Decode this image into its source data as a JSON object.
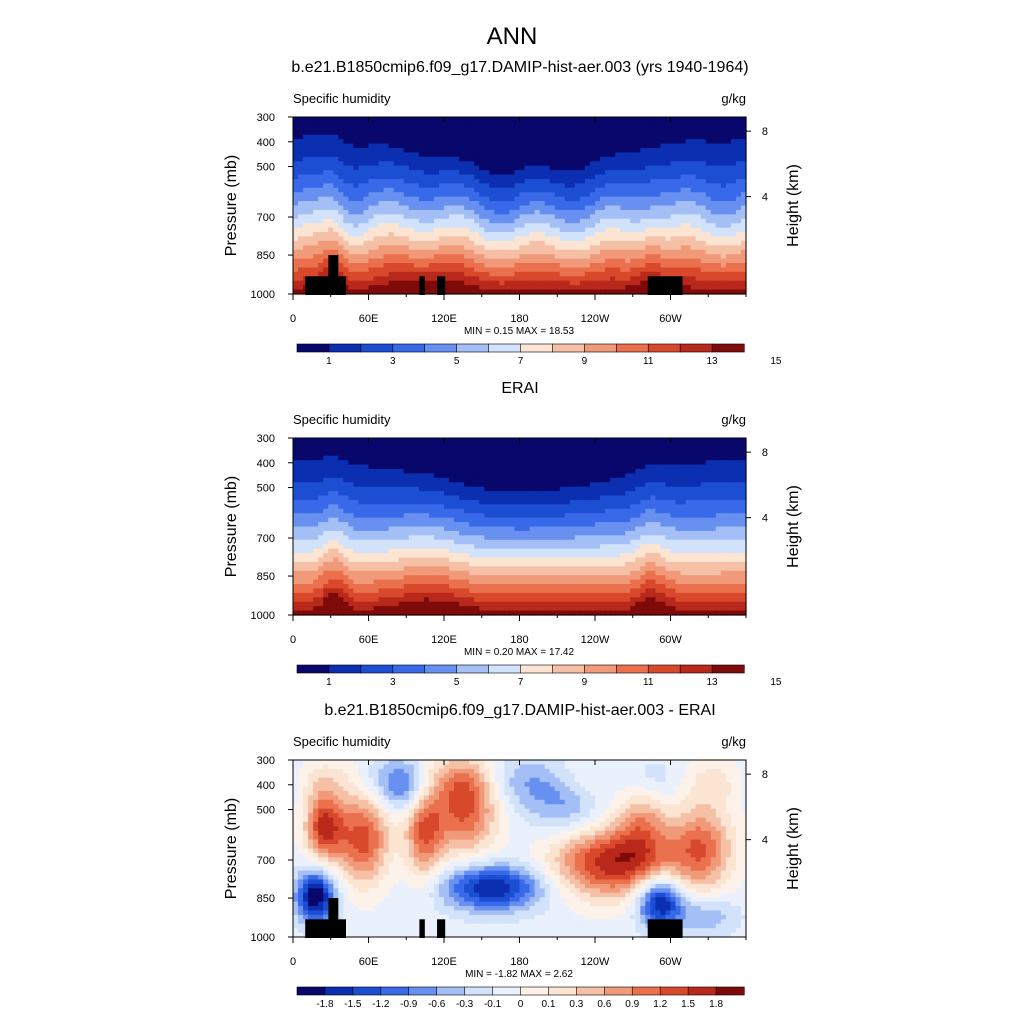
{
  "figure": {
    "title": "ANN"
  },
  "chart_data": [
    {
      "type": "heatmap",
      "title": "b.e21.B1850cmip6.f09_g17.DAMIP-hist-aer.003 (yrs 1940-1964)",
      "left_label": "Specific humidity",
      "right_label": "g/kg",
      "ylabel": "Pressure (mb)",
      "y2label": "Height (km)",
      "x_ticks": [
        "0",
        "60E",
        "120E",
        "180",
        "120W",
        "60W"
      ],
      "y_ticks": [
        "300",
        "400",
        "500",
        "700",
        "850",
        "1000"
      ],
      "y2_ticks": [
        "8",
        "4"
      ],
      "stats": "MIN =   0.15  MAX =  18.53",
      "colorbar": {
        "labels": [
          "1",
          "3",
          "5",
          "7",
          "9",
          "11",
          "13",
          "15"
        ],
        "colors": [
          "#08076b",
          "#0b2fb0",
          "#1c4ed4",
          "#3869e8",
          "#6890f0",
          "#a4bff6",
          "#d2e2fb",
          "#fbe4d2",
          "#f6c0a6",
          "#f19a7a",
          "#ea704e",
          "#d8492c",
          "#b8291b",
          "#7f0a0a"
        ]
      },
      "field": "moisture",
      "topography": true
    },
    {
      "type": "heatmap",
      "title": "ERAI",
      "left_label": "Specific humidity",
      "right_label": "g/kg",
      "ylabel": "Pressure (mb)",
      "y2label": "Height (km)",
      "x_ticks": [
        "0",
        "60E",
        "120E",
        "180",
        "120W",
        "60W"
      ],
      "y_ticks": [
        "300",
        "400",
        "500",
        "700",
        "850",
        "1000"
      ],
      "y2_ticks": [
        "8",
        "4"
      ],
      "stats": "MIN =   0.20  MAX =  17.42",
      "colorbar": {
        "labels": [
          "1",
          "3",
          "5",
          "7",
          "9",
          "11",
          "13",
          "15"
        ],
        "colors": [
          "#08076b",
          "#0b2fb0",
          "#1c4ed4",
          "#3869e8",
          "#6890f0",
          "#a4bff6",
          "#d2e2fb",
          "#fbe4d2",
          "#f6c0a6",
          "#f19a7a",
          "#ea704e",
          "#d8492c",
          "#b8291b",
          "#7f0a0a"
        ]
      },
      "field": "moisture",
      "topography": false
    },
    {
      "type": "heatmap",
      "title": "b.e21.B1850cmip6.f09_g17.DAMIP-hist-aer.003 - ERAI",
      "left_label": "Specific humidity",
      "right_label": "g/kg",
      "ylabel": "Pressure (mb)",
      "y2label": "Height (km)",
      "x_ticks": [
        "0",
        "60E",
        "120E",
        "180",
        "120W",
        "60W"
      ],
      "y_ticks": [
        "300",
        "400",
        "500",
        "700",
        "850",
        "1000"
      ],
      "y2_ticks": [
        "8",
        "4"
      ],
      "stats": "MIN =  -1.82  MAX =   2.62",
      "colorbar": {
        "labels": [
          "-1.8",
          "-1.5",
          "-1.2",
          "-0.9",
          "-0.6",
          "-0.3",
          "-0.1",
          "0",
          "0.1",
          "0.3",
          "0.6",
          "0.9",
          "1.2",
          "1.5",
          "1.8"
        ],
        "colors": [
          "#08076b",
          "#0b2fb0",
          "#1c4ed4",
          "#3869e8",
          "#6890f0",
          "#a4bff6",
          "#d2e2fb",
          "#eaf1fd",
          "#fdf2ea",
          "#fbe4d2",
          "#f6c0a6",
          "#f19a7a",
          "#ea704e",
          "#d8492c",
          "#b8291b",
          "#7f0a0a"
        ]
      },
      "field": "difference",
      "topography": true
    }
  ]
}
